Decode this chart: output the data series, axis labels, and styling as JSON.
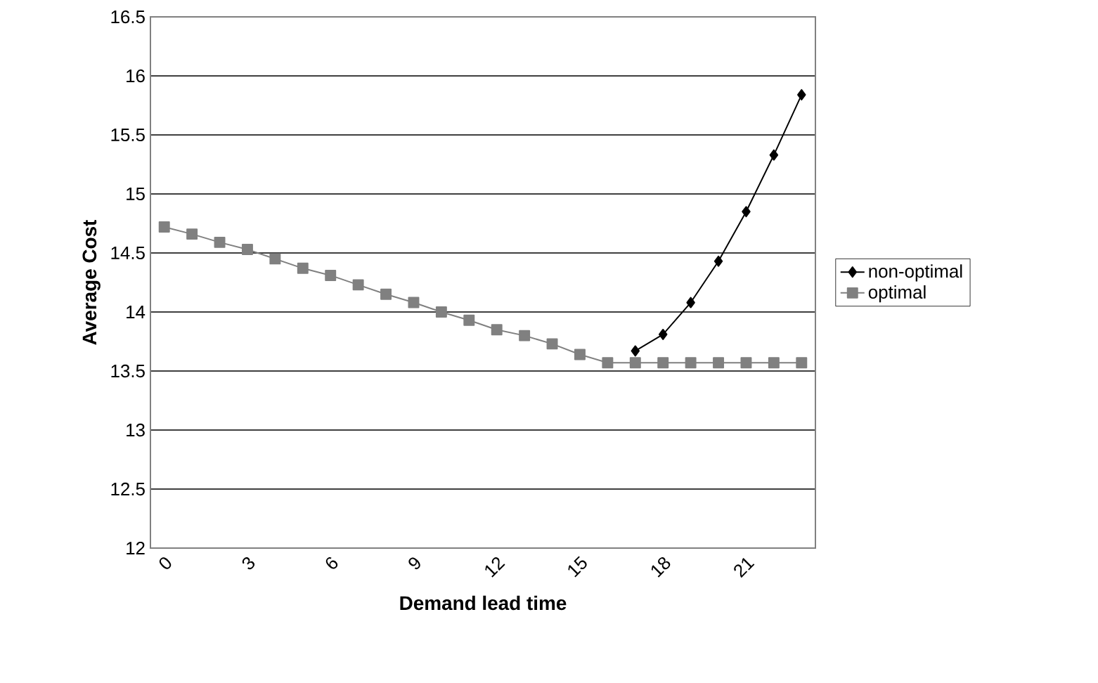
{
  "chart_data": {
    "type": "line",
    "xlabel": "Demand lead time",
    "ylabel": "Average Cost",
    "x": [
      0,
      1,
      2,
      3,
      4,
      5,
      6,
      7,
      8,
      9,
      10,
      11,
      12,
      13,
      14,
      15,
      16,
      17,
      18,
      19,
      20,
      21,
      22,
      23
    ],
    "xlim": [
      -0.5,
      23.5
    ],
    "xticks": [
      0,
      3,
      6,
      9,
      12,
      15,
      18,
      21
    ],
    "ylim": [
      12,
      16.5
    ],
    "yticks": [
      12,
      12.5,
      13,
      13.5,
      14,
      14.5,
      15,
      15.5,
      16,
      16.5
    ],
    "grid": "y",
    "legend": "right",
    "series": [
      {
        "name": "non-optimal",
        "color": "#000000",
        "marker": "diamond",
        "values": [
          null,
          null,
          null,
          null,
          null,
          null,
          null,
          null,
          null,
          null,
          null,
          null,
          null,
          null,
          null,
          null,
          null,
          13.67,
          13.81,
          14.08,
          14.43,
          14.85,
          15.33,
          15.84
        ]
      },
      {
        "name": "optimal",
        "color": "#808080",
        "marker": "square",
        "values": [
          14.72,
          14.66,
          14.59,
          14.53,
          14.45,
          14.37,
          14.31,
          14.23,
          14.15,
          14.08,
          14.0,
          13.93,
          13.85,
          13.8,
          13.73,
          13.64,
          13.57,
          13.57,
          13.57,
          13.57,
          13.57,
          13.57,
          13.57,
          13.57
        ]
      }
    ]
  }
}
